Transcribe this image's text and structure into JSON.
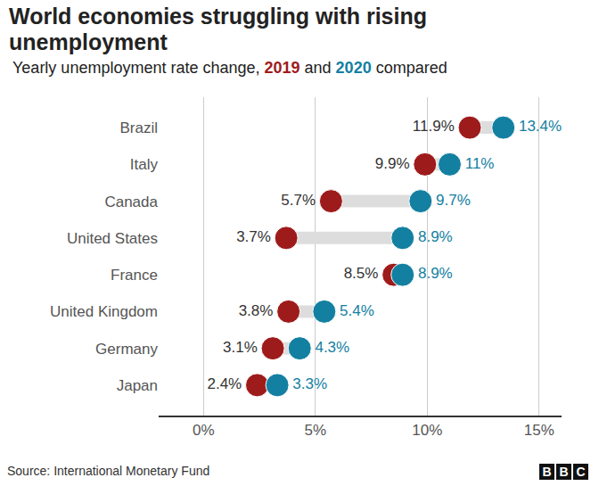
{
  "chart_data": {
    "type": "dumbbell",
    "title": "World economies struggling with rising unemployment",
    "subtitle": "Yearly unemployment rate change, 2019 and 2020 compared",
    "source": "Source: International Monetary Fund",
    "logo": "BBC",
    "orientation": "horizontal",
    "categories": [
      "Brazil",
      "Italy",
      "Canada",
      "United States",
      "France",
      "United Kingdom",
      "Germany",
      "Japan"
    ],
    "series": [
      {
        "name": "2019",
        "color": "#9e1b1b",
        "values": [
          11.9,
          9.9,
          5.7,
          3.7,
          8.5,
          3.8,
          3.1,
          2.4
        ],
        "value_labels": [
          "11.9%",
          "9.9%",
          "5.7%",
          "3.7%",
          "8.5%",
          "3.8%",
          "3.1%",
          "2.4%"
        ]
      },
      {
        "name": "2020",
        "color": "#1380a1",
        "values": [
          13.4,
          11,
          9.7,
          8.9,
          8.9,
          5.4,
          4.3,
          3.3
        ],
        "value_labels": [
          "13.4%",
          "11%",
          "9.7%",
          "8.9%",
          "8.9%",
          "5.4%",
          "4.3%",
          "3.3%"
        ]
      }
    ],
    "xlim": [
      -2,
      16
    ],
    "xticks": [
      {
        "value": 0,
        "label": "0%"
      },
      {
        "value": 5,
        "label": "5%"
      },
      {
        "value": 10,
        "label": "10%"
      },
      {
        "value": 15,
        "label": "15%"
      }
    ],
    "grid": true,
    "data_labels": true,
    "marker": "circle"
  }
}
